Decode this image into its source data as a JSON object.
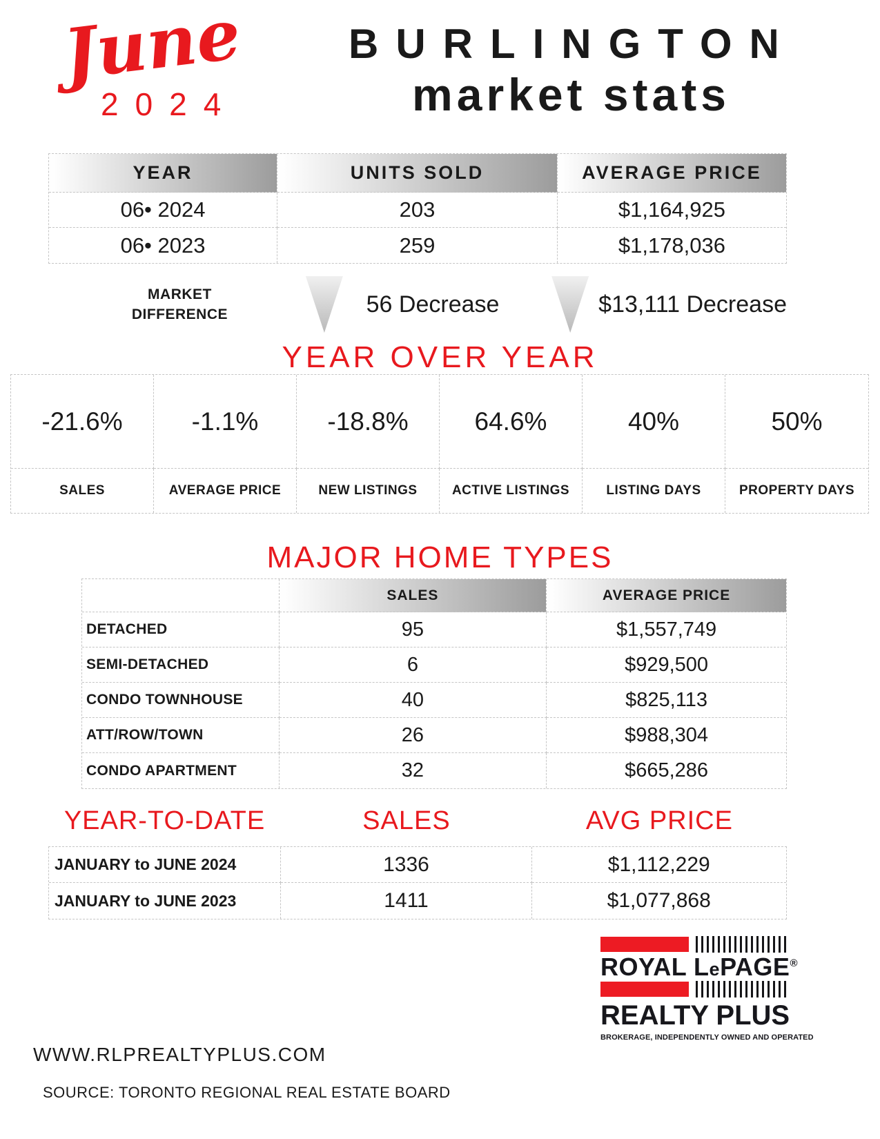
{
  "colors": {
    "accent_red": "#E8191E",
    "logo_red": "#ED1B23",
    "header_gradient_end": "#9C9C9C"
  },
  "header": {
    "month": "June",
    "year": "2024",
    "title1": "BURLINGTON",
    "title2": "market stats"
  },
  "summary": {
    "headers": [
      "YEAR",
      "UNITS SOLD",
      "AVERAGE PRICE"
    ],
    "rows": [
      {
        "year": "06• 2024",
        "units": "203",
        "price": "$1,164,925"
      },
      {
        "year": "06• 2023",
        "units": "259",
        "price": "$1,178,036"
      }
    ]
  },
  "market_difference": {
    "line1": "MARKET",
    "line2": "DIFFERENCE",
    "units_change": "56 Decrease",
    "price_change": "$13,111 Decrease"
  },
  "yoy": {
    "title": "YEAR OVER YEAR",
    "items": [
      {
        "value": "-21.6%",
        "label": "SALES"
      },
      {
        "value": "-1.1%",
        "label": "AVERAGE PRICE"
      },
      {
        "value": "-18.8%",
        "label": "NEW LISTINGS"
      },
      {
        "value": "64.6%",
        "label": "ACTIVE LISTINGS"
      },
      {
        "value": "40%",
        "label": "LISTING DAYS"
      },
      {
        "value": "50%",
        "label": "PROPERTY DAYS"
      }
    ]
  },
  "home_types": {
    "title": "MAJOR HOME TYPES",
    "headers": [
      "SALES",
      "AVERAGE PRICE"
    ],
    "rows": [
      {
        "type": "DETACHED",
        "sales": "95",
        "price": "$1,557,749"
      },
      {
        "type": "SEMI-DETACHED",
        "sales": "6",
        "price": "$929,500"
      },
      {
        "type": "CONDO TOWNHOUSE",
        "sales": "40",
        "price": "$825,113"
      },
      {
        "type": "ATT/ROW/TOWN",
        "sales": "26",
        "price": "$988,304"
      },
      {
        "type": "CONDO APARTMENT",
        "sales": "32",
        "price": "$665,286"
      }
    ]
  },
  "ytd": {
    "headers": [
      "YEAR-TO-DATE",
      "SALES",
      "AVG PRICE"
    ],
    "rows": [
      {
        "period": "JANUARY to JUNE 2024",
        "sales": "1336",
        "price": "$1,112,229"
      },
      {
        "period": "JANUARY to JUNE 2023",
        "sales": "1411",
        "price": "$1,077,868"
      }
    ]
  },
  "footer": {
    "website": "WWW.RLPREALTYPLUS.COM",
    "source": "SOURCE:  TORONTO REGIONAL REAL ESTATE BOARD",
    "logo": {
      "royal": "ROYAL L",
      "e": "e",
      "page": "PAGE",
      "reg": "®",
      "realty": "REALTY PLUS",
      "tagline": "BROKERAGE, INDEPENDENTLY OWNED AND OPERATED"
    }
  }
}
